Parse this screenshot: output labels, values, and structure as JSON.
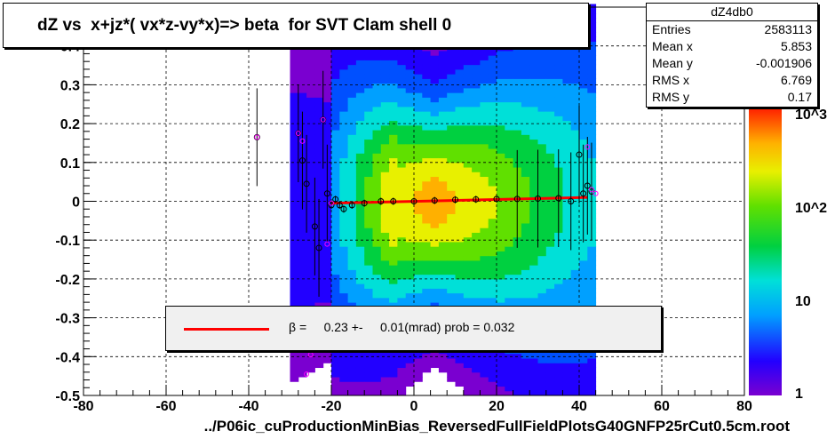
{
  "title": "dZ vs  x+jz*( vx*z-vy*x)=> beta  for SVT Clam shell 0",
  "stats": {
    "name": "dZ4db0",
    "rows": [
      {
        "label": "Entries",
        "value": "2583113"
      },
      {
        "label": "Mean x",
        "value": "5.853"
      },
      {
        "label": "Mean y",
        "value": "-0.001906"
      },
      {
        "label": "RMS x",
        "value": "6.769"
      },
      {
        "label": "RMS y",
        "value": "0.17"
      }
    ]
  },
  "legend": {
    "text": "β =     0.23 +-     0.01(mrad) prob = 0.032",
    "line_color": "#ff0000"
  },
  "filename": "../P06ic_cuProductionMinBias_ReversedFullFieldPlotsG40GNFP25rCut0.5cm.root",
  "chart_data": {
    "type": "heatmap",
    "xlim": [
      -80,
      80
    ],
    "ylim": [
      -0.5,
      0.5
    ],
    "x_ticks": [
      "-80",
      "-60",
      "-40",
      "-20",
      "0",
      "20",
      "40",
      "60",
      "80"
    ],
    "y_ticks": [
      "-0.5",
      "-0.4",
      "-0.3",
      "-0.2",
      "-0.1",
      "0",
      "0.1",
      "0.2",
      "0.3",
      "0.4"
    ],
    "grid": true,
    "colorbar": {
      "scale": "log",
      "labels": [
        "1",
        "10",
        "10^2",
        "10^3"
      ]
    },
    "fit_line": {
      "x": [
        -20,
        42
      ],
      "y": [
        -0.005,
        0.01
      ],
      "color": "#ff0000"
    },
    "profile_points": {
      "x": [
        -38,
        -28,
        -27,
        -26,
        -24,
        -23,
        -22,
        -21,
        -20,
        -19,
        -18,
        -17,
        -15,
        -12,
        -8,
        -5,
        0,
        5,
        10,
        15,
        20,
        25,
        30,
        35,
        38,
        40,
        41,
        42,
        43
      ],
      "y": [
        0.165,
        0.175,
        0.105,
        0.045,
        -0.065,
        -0.12,
        0.21,
        0.02,
        -0.01,
        0.005,
        -0.01,
        -0.02,
        -0.01,
        -0.005,
        0.0,
        0.0,
        0.0,
        0.002,
        0.004,
        0.005,
        0.006,
        0.006,
        0.007,
        0.008,
        0.0,
        0.12,
        0.02,
        0.04,
        0.025
      ]
    },
    "outlier_points": {
      "x": [
        -38,
        -28,
        -27,
        -26,
        -25,
        -22,
        -21,
        -20,
        42,
        43,
        44
      ],
      "y": [
        0.165,
        0.175,
        0.155,
        -0.445,
        -0.395,
        0.21,
        -0.11,
        -0.005,
        0.14,
        0.03,
        0.02
      ]
    }
  }
}
